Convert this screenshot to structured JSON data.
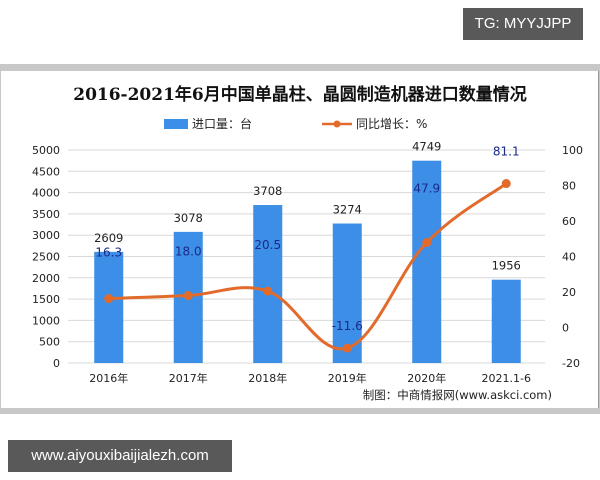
{
  "watermark_top": "TG: MYYJJPP",
  "watermark_bottom": "www.aiyouxibaijialezh.com",
  "source_note": "制图：中商情报网(www.askci.com)",
  "colors": {
    "bar": "#3d8ee6",
    "line": "#e26b2c",
    "line_label": "#1a2a8a",
    "grid": "#d9d9d9"
  },
  "chart_data": {
    "type": "bar+line",
    "title": "2016-2021年6月中国单晶柱、晶圆制造机器进口数量情况",
    "categories": [
      "2016年",
      "2017年",
      "2018年",
      "2019年",
      "2020年",
      "2021.1-6"
    ],
    "series": [
      {
        "name": "进口量：台",
        "type": "bar",
        "axis": "left",
        "values": [
          2609,
          3078,
          3708,
          3274,
          4749,
          1956
        ],
        "labels": [
          "2609",
          "3078",
          "3708",
          "3274",
          "4749",
          "1956"
        ]
      },
      {
        "name": "同比增长：%",
        "type": "line",
        "axis": "right",
        "values": [
          16.3,
          18.0,
          20.5,
          -11.6,
          47.9,
          81.1
        ],
        "labels": [
          "16.3",
          "18.0",
          "20.5",
          "-11.6",
          "47.9",
          "81.1"
        ]
      }
    ],
    "left_axis": {
      "ylim": [
        0,
        5000
      ],
      "ticks": [
        "5000",
        "4500",
        "4000",
        "3500",
        "3000",
        "2500",
        "2000",
        "1500",
        "1000",
        "500",
        "0"
      ]
    },
    "right_axis": {
      "ylim": [
        -20,
        100
      ],
      "ticks": [
        "100",
        "80",
        "60",
        "40",
        "20",
        "0",
        "-20"
      ]
    },
    "grid": true,
    "legend_position": "top",
    "legend": [
      "进口量：台",
      "同比增长：%"
    ]
  }
}
